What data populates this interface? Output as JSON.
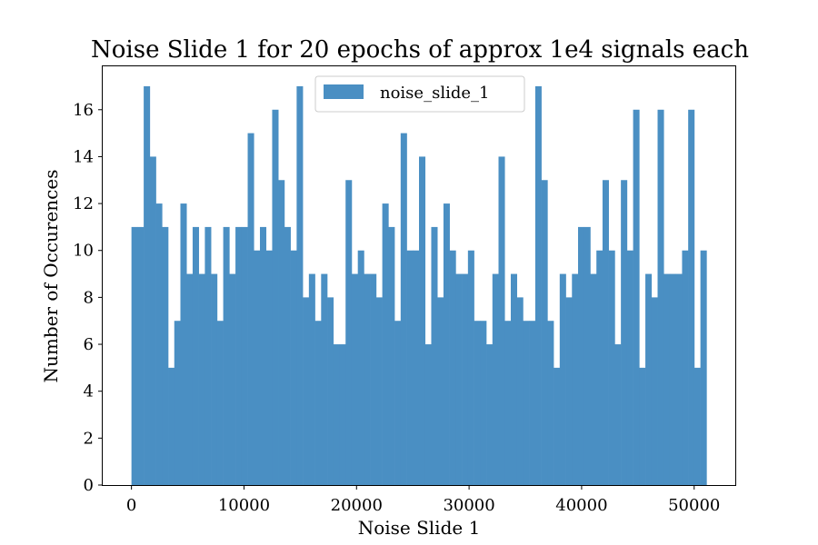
{
  "chart_data": {
    "type": "bar",
    "title": "Noise Slide 1 for 20 epochs of approx 1e4 signals each",
    "xlabel": "Noise Slide 1",
    "ylabel": "Number of Occurences",
    "xlim": [
      -2555,
      53655
    ],
    "ylim": [
      0,
      17.85
    ],
    "bin_range": [
      0,
      51100
    ],
    "x_ticks": [
      0,
      10000,
      20000,
      30000,
      40000,
      50000
    ],
    "x_tick_labels": [
      "0",
      "10000",
      "20000",
      "30000",
      "40000",
      "50000"
    ],
    "y_ticks": [
      0,
      2,
      4,
      6,
      8,
      10,
      12,
      14,
      16
    ],
    "y_tick_labels": [
      "0",
      "2",
      "4",
      "6",
      "8",
      "10",
      "12",
      "14",
      "16"
    ],
    "grid": false,
    "legend_position": "top-center",
    "series": [
      {
        "name": "noise_slide_1",
        "color": "#4a8fc3",
        "values": [
          11,
          11,
          17,
          14,
          12,
          11,
          5,
          7,
          12,
          9,
          11,
          9,
          11,
          9,
          7,
          11,
          9,
          11,
          11,
          15,
          10,
          11,
          10,
          16,
          13,
          11,
          10,
          17,
          8,
          9,
          7,
          9,
          8,
          6,
          6,
          13,
          9,
          10,
          9,
          9,
          8,
          12,
          11,
          7,
          15,
          10,
          10,
          14,
          6,
          11,
          8,
          12,
          10,
          9,
          9,
          10,
          7,
          7,
          6,
          9,
          14,
          7,
          9,
          8,
          7,
          7,
          17,
          13,
          7,
          5,
          9,
          8,
          9,
          11,
          11,
          9,
          10,
          13,
          10,
          6,
          13,
          10,
          16,
          5,
          9,
          8,
          16,
          9,
          9,
          9,
          10,
          16,
          5,
          10
        ]
      }
    ]
  }
}
